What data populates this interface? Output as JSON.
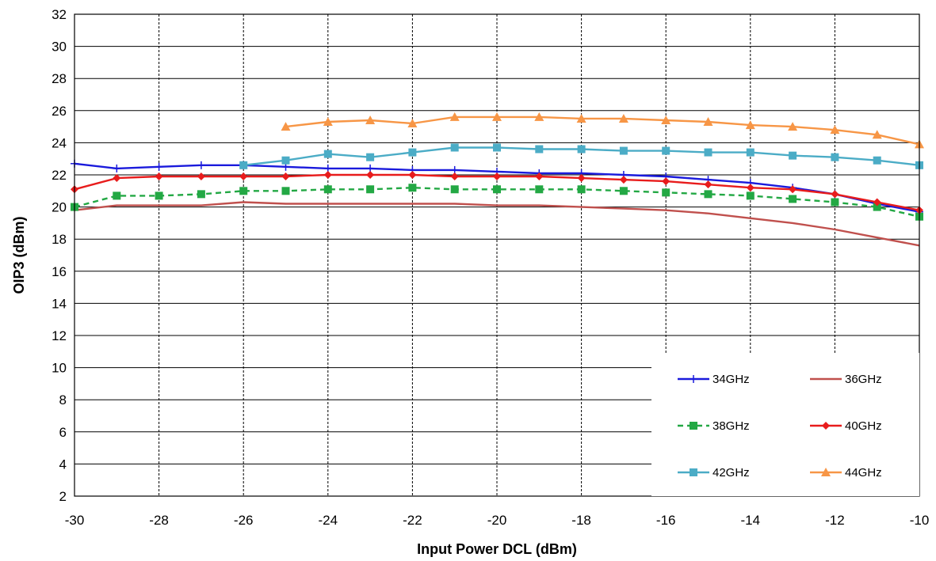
{
  "chart_data": {
    "type": "line",
    "title": "",
    "xlabel": "Input Power DCL (dBm)",
    "ylabel": "OIP3 (dBm)",
    "xlim": [
      -30,
      -10
    ],
    "ylim": [
      2,
      32
    ],
    "xticks": [
      -30,
      -28,
      -26,
      -24,
      -22,
      -20,
      -18,
      -16,
      -14,
      -12,
      -10
    ],
    "yticks": [
      2,
      4,
      6,
      8,
      10,
      12,
      14,
      16,
      18,
      20,
      22,
      24,
      26,
      28,
      30,
      32
    ],
    "x_tick_labels": [
      "-30",
      "-28",
      "-26",
      "-24",
      "-22",
      "-20",
      "-18",
      "-16",
      "-14",
      "-12",
      "-10"
    ],
    "y_tick_labels": [
      "2",
      "4",
      "6",
      "8",
      "10",
      "12",
      "14",
      "16",
      "18",
      "20",
      "22",
      "24",
      "26",
      "28",
      "30",
      "32"
    ],
    "grid": {
      "horizontal": "solid",
      "vertical": "dashed"
    },
    "legend_position": "bottom-right",
    "series": [
      {
        "name": "34GHz",
        "color": "#1a1adc",
        "marker": "plus",
        "dashed": false,
        "x": [
          -30,
          -29,
          -28,
          -27,
          -26,
          -25,
          -24,
          -23,
          -22,
          -21,
          -20,
          -19,
          -18,
          -17,
          -16,
          -15,
          -14,
          -13,
          -12,
          -11,
          -10
        ],
        "y": [
          22.7,
          22.4,
          22.5,
          22.6,
          22.6,
          22.5,
          22.4,
          22.4,
          22.3,
          22.3,
          22.2,
          22.1,
          22.1,
          22.0,
          21.9,
          21.7,
          21.5,
          21.2,
          20.8,
          20.2,
          19.7
        ]
      },
      {
        "name": "36GHz",
        "color": "#c0504d",
        "marker": "none",
        "dashed": false,
        "x": [
          -30,
          -29,
          -28,
          -27,
          -26,
          -25,
          -24,
          -23,
          -22,
          -21,
          -20,
          -19,
          -18,
          -17,
          -16,
          -15,
          -14,
          -13,
          -12,
          -11,
          -10
        ],
        "y": [
          19.8,
          20.1,
          20.1,
          20.1,
          20.3,
          20.2,
          20.2,
          20.2,
          20.2,
          20.2,
          20.1,
          20.1,
          20.0,
          19.9,
          19.8,
          19.6,
          19.3,
          19.0,
          18.6,
          18.1,
          17.6
        ]
      },
      {
        "name": "38GHz",
        "color": "#23a844",
        "marker": "square",
        "dashed": true,
        "x": [
          -30,
          -29,
          -28,
          -27,
          -26,
          -25,
          -24,
          -23,
          -22,
          -21,
          -20,
          -19,
          -18,
          -17,
          -16,
          -15,
          -14,
          -13,
          -12,
          -11,
          -10
        ],
        "y": [
          20.0,
          20.7,
          20.7,
          20.8,
          21.0,
          21.0,
          21.1,
          21.1,
          21.2,
          21.1,
          21.1,
          21.1,
          21.1,
          21.0,
          20.9,
          20.8,
          20.7,
          20.5,
          20.3,
          20.0,
          19.4
        ]
      },
      {
        "name": "40GHz",
        "color": "#e81c1c",
        "marker": "diamond",
        "dashed": false,
        "x": [
          -30,
          -29,
          -28,
          -27,
          -26,
          -25,
          -24,
          -23,
          -22,
          -21,
          -20,
          -19,
          -18,
          -17,
          -16,
          -15,
          -14,
          -13,
          -12,
          -11,
          -10
        ],
        "y": [
          21.1,
          21.8,
          21.9,
          21.9,
          21.9,
          21.9,
          22.0,
          22.0,
          22.0,
          21.9,
          21.9,
          21.9,
          21.8,
          21.7,
          21.6,
          21.4,
          21.2,
          21.1,
          20.8,
          20.3,
          19.8
        ]
      },
      {
        "name": "42GHz",
        "color": "#4bacc6",
        "marker": "square",
        "dashed": false,
        "x": [
          -26,
          -25,
          -24,
          -23,
          -22,
          -21,
          -20,
          -19,
          -18,
          -17,
          -16,
          -15,
          -14,
          -13,
          -12,
          -11,
          -10
        ],
        "y": [
          22.6,
          22.9,
          23.3,
          23.1,
          23.4,
          23.7,
          23.7,
          23.6,
          23.6,
          23.5,
          23.5,
          23.4,
          23.4,
          23.2,
          23.1,
          22.9,
          22.6
        ]
      },
      {
        "name": "44GHz",
        "color": "#f79646",
        "marker": "triangle",
        "dashed": false,
        "x": [
          -25,
          -24,
          -23,
          -22,
          -21,
          -20,
          -19,
          -18,
          -17,
          -16,
          -15,
          -14,
          -13,
          -12,
          -11,
          -10
        ],
        "y": [
          25.0,
          25.3,
          25.4,
          25.2,
          25.6,
          25.6,
          25.6,
          25.5,
          25.5,
          25.4,
          25.3,
          25.1,
          25.0,
          24.8,
          24.5,
          23.9
        ]
      }
    ]
  }
}
